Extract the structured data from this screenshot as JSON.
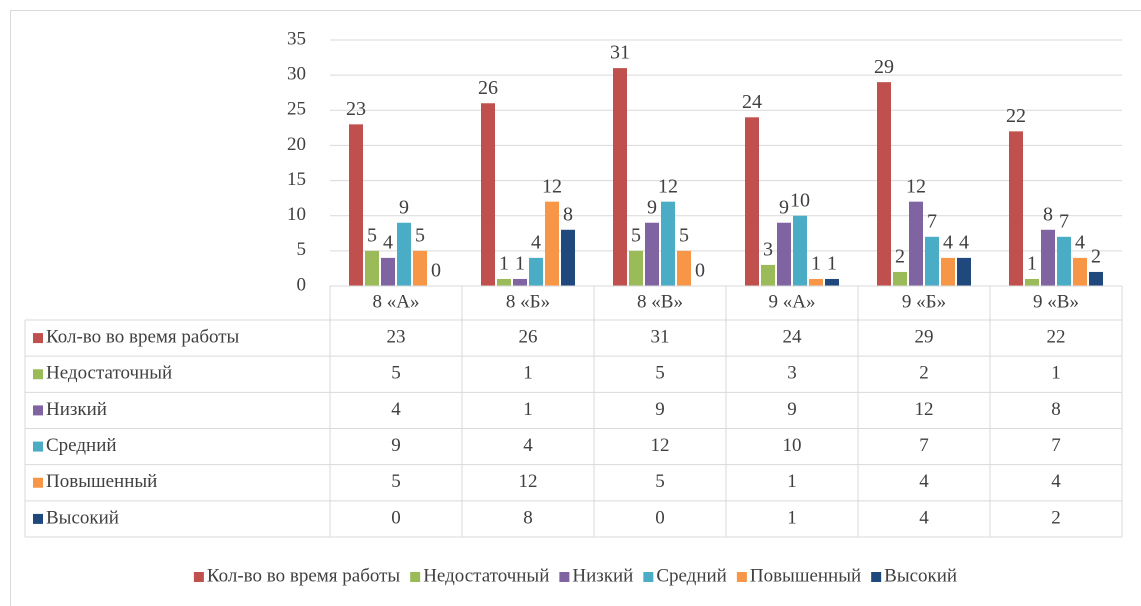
{
  "chart_data": {
    "type": "bar",
    "categories": [
      "8 «А»",
      "8 «Б»",
      "8 «В»",
      "9 «А»",
      "9 «Б»",
      "9 «В»"
    ],
    "series": [
      {
        "name": "Кол-во во время работы",
        "color": "#c0504d",
        "values": [
          23,
          26,
          31,
          24,
          29,
          22
        ]
      },
      {
        "name": "Недостаточный",
        "color": "#9bbb59",
        "values": [
          5,
          1,
          5,
          3,
          2,
          1
        ]
      },
      {
        "name": "Низкий",
        "color": "#8064a2",
        "values": [
          4,
          1,
          9,
          9,
          12,
          8
        ]
      },
      {
        "name": "Средний",
        "color": "#4bacc6",
        "values": [
          9,
          4,
          12,
          10,
          7,
          7
        ]
      },
      {
        "name": "Повышенный",
        "color": "#f79646",
        "values": [
          5,
          12,
          5,
          1,
          4,
          4
        ]
      },
      {
        "name": "Высокий",
        "color": "#1f497d",
        "values": [
          0,
          8,
          0,
          1,
          4,
          2
        ]
      }
    ],
    "ylim": [
      0,
      35
    ],
    "yticks": [
      0,
      5,
      10,
      15,
      20,
      25,
      30,
      35
    ],
    "grid": true,
    "data_table": true,
    "legend": "bottom"
  }
}
